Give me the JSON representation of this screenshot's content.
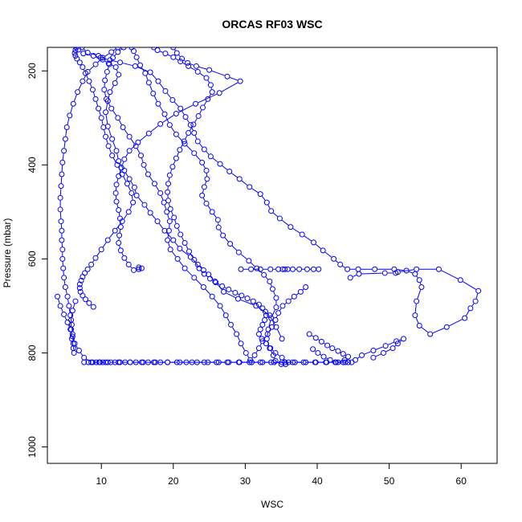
{
  "chart_data": {
    "type": "line",
    "title": "ORCAS RF03 WSC",
    "xlabel": "WSC",
    "ylabel": "Pressure (mbar)",
    "xlim": [
      2.5,
      65
    ],
    "ylim": [
      1035,
      150
    ],
    "y_reversed": true,
    "x_ticks": [
      10,
      20,
      30,
      40,
      50,
      60
    ],
    "y_ticks": [
      200,
      400,
      600,
      800,
      1000
    ],
    "grid": false,
    "legend": "none",
    "marker": "open-circle",
    "color": "#0000ff",
    "series": [
      {
        "x": [
          7.3,
          8.1,
          9.6,
          10.2,
          11.0,
          12.0,
          12.4,
          11.9,
          11.2,
          10.9,
          10.6,
          10.9,
          11.5,
          12.1,
          12.4,
          13.2,
          13.9,
          14.6,
          14.9,
          16.0,
          16.8,
          17.8,
          18.8,
          20.0,
          20.9,
          22.4,
          23.4,
          24.2,
          24.9,
          25.8,
          27.0,
          29.0,
          31.5,
          33.4,
          34.3,
          35.1
        ],
        "y": [
          150,
          161,
          168,
          176,
          184,
          192,
          208,
          226,
          245,
          264,
          288,
          318,
          345,
          370,
          392,
          412,
          430,
          448,
          465,
          485,
          502,
          520,
          540,
          560,
          578,
          596,
          612,
          624,
          633,
          648,
          670,
          685,
          700,
          720,
          745,
          770
        ]
      },
      {
        "x": [
          6.8,
          7.5,
          8.9,
          9.9,
          11.2,
          12.6,
          14.7,
          16.8,
          17.9,
          18.9,
          19.9,
          21.0,
          21.7,
          22.4,
          22.9,
          23.4,
          24.3,
          25.2,
          26.5,
          27.8,
          29.2,
          30.6,
          32.1,
          33.0,
          33.6,
          34.8,
          36.3,
          37.9,
          39.5,
          40.8,
          42.3,
          43.2,
          44.2,
          45.7,
          48.0,
          50.7,
          52.4,
          53.6,
          54.2,
          54.5,
          53.8,
          53.6,
          54.2,
          55.7,
          58.0,
          60.5,
          61.3,
          62.0,
          62.4,
          59.9,
          56.9,
          53.8,
          51.2,
          50.9,
          49.4,
          45.8,
          44.6
        ],
        "y": [
          155,
          163,
          168,
          172,
          177,
          182,
          190,
          203,
          222,
          243,
          262,
          280,
          298,
          315,
          332,
          350,
          367,
          382,
          398,
          414,
          430,
          447,
          462,
          480,
          498,
          514,
          532,
          548,
          565,
          582,
          600,
          612,
          622,
          622,
          622,
          622,
          625,
          632,
          645,
          660,
          690,
          720,
          742,
          760,
          745,
          726,
          705,
          690,
          668,
          645,
          622,
          622,
          628,
          630,
          630,
          632,
          640
        ]
      },
      {
        "x": [
          14.2,
          14.5,
          14.9,
          15.4,
          16.1,
          16.6,
          17.2,
          17.9,
          18.8,
          19.5,
          20.4,
          21.6,
          22.9,
          24.0,
          24.6,
          24.7,
          24.3,
          24.0,
          24.6,
          25.4,
          26.2,
          26.3,
          26.9,
          27.9,
          29.1,
          30.5,
          31.6,
          32.6,
          33.4,
          33.8,
          34.3,
          34.3,
          33.6,
          33.2,
          33.0,
          33.4,
          33.9,
          34.2,
          35.0,
          35.6
        ],
        "y": [
          150,
          158,
          171,
          188,
          205,
          225,
          248,
          270,
          292,
          315,
          335,
          355,
          375,
          395,
          412,
          430,
          447,
          465,
          482,
          500,
          517,
          533,
          550,
          568,
          586,
          604,
          620,
          634,
          648,
          664,
          683,
          703,
          726,
          750,
          770,
          790,
          805,
          817,
          824,
          824
        ]
      },
      {
        "x": [
          13.1,
          12.3,
          11.6,
          11.1,
          10.8,
          10.5,
          10.4,
          10.7,
          11.4,
          12.3,
          13.0,
          13.9,
          14.8,
          15.5,
          15.9,
          16.5,
          17.4,
          18.2,
          18.7,
          19.1,
          19.5,
          19.4,
          19.2,
          19.6,
          20.6,
          21.6,
          22.9,
          24.2,
          25.4,
          26.5,
          27.3,
          28.0,
          28.8,
          29.4,
          30.1,
          30.7,
          31.3,
          31.9,
          32.4,
          33.1,
          33.7,
          34.2,
          34.6,
          35.2,
          36.0,
          36.8,
          37.7,
          38.4
        ],
        "y": [
          150,
          160,
          172,
          186,
          202,
          220,
          240,
          260,
          280,
          300,
          320,
          340,
          360,
          380,
          400,
          420,
          440,
          460,
          480,
          500,
          520,
          540,
          560,
          580,
          600,
          620,
          640,
          660,
          680,
          700,
          720,
          740,
          760,
          780,
          800,
          815,
          805,
          790,
          775,
          760,
          745,
          730,
          715,
          700,
          690,
          680,
          670,
          660
        ]
      },
      {
        "x": [
          17.3,
          17.8,
          18.9,
          20.0,
          21.0,
          22.1,
          23.4,
          24.6,
          25.2,
          25.4,
          24.8,
          24.1,
          23.5,
          22.8,
          22.1,
          21.5,
          20.9,
          20.4,
          19.9,
          19.5,
          19.3,
          19.2,
          19.3,
          19.6,
          20.1,
          20.5,
          21.0,
          21.6,
          22.2,
          22.9,
          23.6,
          24.3,
          25.1,
          25.9,
          26.8,
          27.7,
          28.6,
          29.5,
          30.3,
          31.1,
          31.9,
          32.4,
          32.8,
          32.9,
          32.7,
          32.4,
          32.1,
          31.9,
          32.3,
          32.9,
          33.5,
          34.2,
          35.1,
          36.0
        ],
        "y": [
          150,
          156,
          163,
          171,
          180,
          190,
          202,
          215,
          230,
          245,
          260,
          278,
          296,
          314,
          332,
          350,
          368,
          386,
          404,
          422,
          440,
          458,
          476,
          494,
          512,
          530,
          548,
          566,
          584,
          602,
          620,
          632,
          642,
          650,
          658,
          665,
          672,
          678,
          684,
          690,
          697,
          705,
          712,
          720,
          730,
          740,
          750,
          760,
          770,
          780,
          790,
          800,
          810,
          820
        ]
      },
      {
        "x": [
          20.0,
          20.5,
          21.2,
          22.0,
          23.2,
          25.0,
          27.5,
          29.3,
          26.4,
          23.1,
          20.4,
          18.2,
          16.6,
          15.1,
          13.9,
          13.2,
          12.8,
          12.4,
          12.1,
          12.0,
          12.1,
          12.4,
          12.6,
          12.7,
          12.5,
          12.4,
          12.7,
          13.2,
          13.8,
          14.5,
          15.2,
          15.6,
          15.2
        ],
        "y": [
          150,
          162,
          174,
          183,
          190,
          198,
          212,
          222,
          247,
          270,
          291,
          313,
          333,
          352,
          370,
          388,
          406,
          424,
          442,
          460,
          478,
          496,
          514,
          532,
          550,
          566,
          582,
          598,
          612,
          624,
          622,
          620,
          618
        ]
      },
      {
        "x": [
          12.3,
          11.4,
          10.2,
          9.2,
          8.1,
          7.4,
          6.7,
          6.1,
          5.6,
          5.2,
          5.0,
          4.8,
          4.6,
          4.5,
          4.4,
          4.3,
          4.3,
          4.4,
          4.5,
          4.5,
          4.6,
          4.6,
          4.7,
          4.8,
          5.0,
          5.3,
          5.5,
          5.7,
          5.9,
          6.0,
          6.1,
          6.2,
          6.1,
          5.9,
          5.8,
          5.8,
          6.0,
          6.4
        ],
        "y": [
          150,
          160,
          172,
          186,
          202,
          222,
          245,
          270,
          295,
          320,
          345,
          370,
          395,
          420,
          445,
          470,
          495,
          520,
          540,
          560,
          580,
          600,
          620,
          640,
          660,
          680,
          700,
          720,
          740,
          760,
          780,
          800,
          790,
          770,
          750,
          730,
          710,
          690
        ]
      },
      {
        "x": [
          6.5,
          6.4,
          6.3,
          6.4,
          6.6,
          7.0,
          7.4,
          7.8,
          8.3,
          8.8,
          9.2,
          9.6,
          10.0,
          10.3,
          10.6,
          11.0,
          11.5,
          12.2,
          12.9,
          13.6,
          14.2,
          14.4,
          13.8,
          12.9,
          11.9,
          10.9,
          10.0,
          9.2,
          8.6,
          8.1,
          7.7,
          7.4,
          7.2,
          7.0,
          7.0,
          7.1,
          7.4,
          7.8,
          8.3,
          8.9
        ],
        "y": [
          150,
          156,
          162,
          168,
          174,
          182,
          192,
          205,
          222,
          240,
          260,
          280,
          300,
          320,
          340,
          360,
          380,
          400,
          420,
          440,
          460,
          480,
          500,
          520,
          540,
          560,
          580,
          598,
          612,
          622,
          630,
          638,
          646,
          654,
          662,
          670,
          678,
          686,
          694,
          702
        ]
      },
      {
        "x": [
          3.9,
          4.3,
          4.8,
          5.3,
          5.7,
          6.0,
          6.3,
          6.9,
          7.6,
          8.6,
          9.7,
          10.9,
          12.4,
          14.0,
          15.8,
          17.5,
          19.2,
          20.9,
          22.6,
          24.3,
          26.0,
          27.5,
          29.1,
          30.6,
          32.1,
          33.6,
          35.1,
          36.6,
          38.1,
          39.7,
          41.2,
          42.5,
          43.6,
          44.3
        ],
        "y": [
          680,
          700,
          718,
          735,
          750,
          765,
          780,
          795,
          810,
          820,
          820,
          820,
          820,
          820,
          820,
          820,
          820,
          820,
          820,
          820,
          820,
          820,
          820,
          820,
          820,
          820,
          820,
          820,
          820,
          820,
          820,
          820,
          820,
          820
        ]
      },
      {
        "x": [
          7.6,
          8.2,
          8.8,
          9.3,
          9.8,
          10.2,
          10.6,
          11.3,
          11.9,
          12.6,
          13.3,
          14.0,
          14.8,
          15.6,
          16.5,
          17.3,
          18.2,
          19.2,
          20.5,
          21.8,
          23.3,
          24.8,
          26.3,
          27.7,
          29.2,
          30.9,
          32.4,
          34.0,
          35.5,
          36.9,
          38.4,
          39.8,
          41.3,
          42.6,
          43.9,
          44.8,
          45.3,
          46.2,
          47.8,
          49.5,
          51.0,
          52.0,
          51.2,
          50.5,
          49.2,
          47.8
        ],
        "y": [
          820,
          820,
          820,
          820,
          820,
          820,
          820,
          820,
          820,
          820,
          820,
          820,
          820,
          820,
          820,
          820,
          820,
          820,
          820,
          820,
          820,
          820,
          820,
          820,
          820,
          820,
          820,
          820,
          820,
          820,
          820,
          820,
          820,
          820,
          820,
          820,
          815,
          805,
          795,
          785,
          775,
          770,
          780,
          790,
          800,
          810
        ]
      },
      {
        "x": [
          29.4,
          30.8,
          32.1,
          33.5,
          34.6,
          35.2,
          35.5,
          35.9,
          36.6,
          37.5,
          38.6,
          39.5,
          40.2
        ],
        "y": [
          622,
          622,
          622,
          622,
          622,
          622,
          622,
          622,
          622,
          622,
          622,
          622,
          622
        ]
      },
      {
        "x": [
          38.9,
          39.8,
          40.6,
          41.4,
          42.1,
          42.9,
          43.6,
          44.3,
          43.8,
          42.9,
          41.8,
          40.9,
          40.1,
          39.4
        ],
        "y": [
          760,
          768,
          776,
          784,
          790,
          796,
          802,
          808,
          815,
          820,
          815,
          808,
          800,
          792
        ]
      }
    ]
  }
}
